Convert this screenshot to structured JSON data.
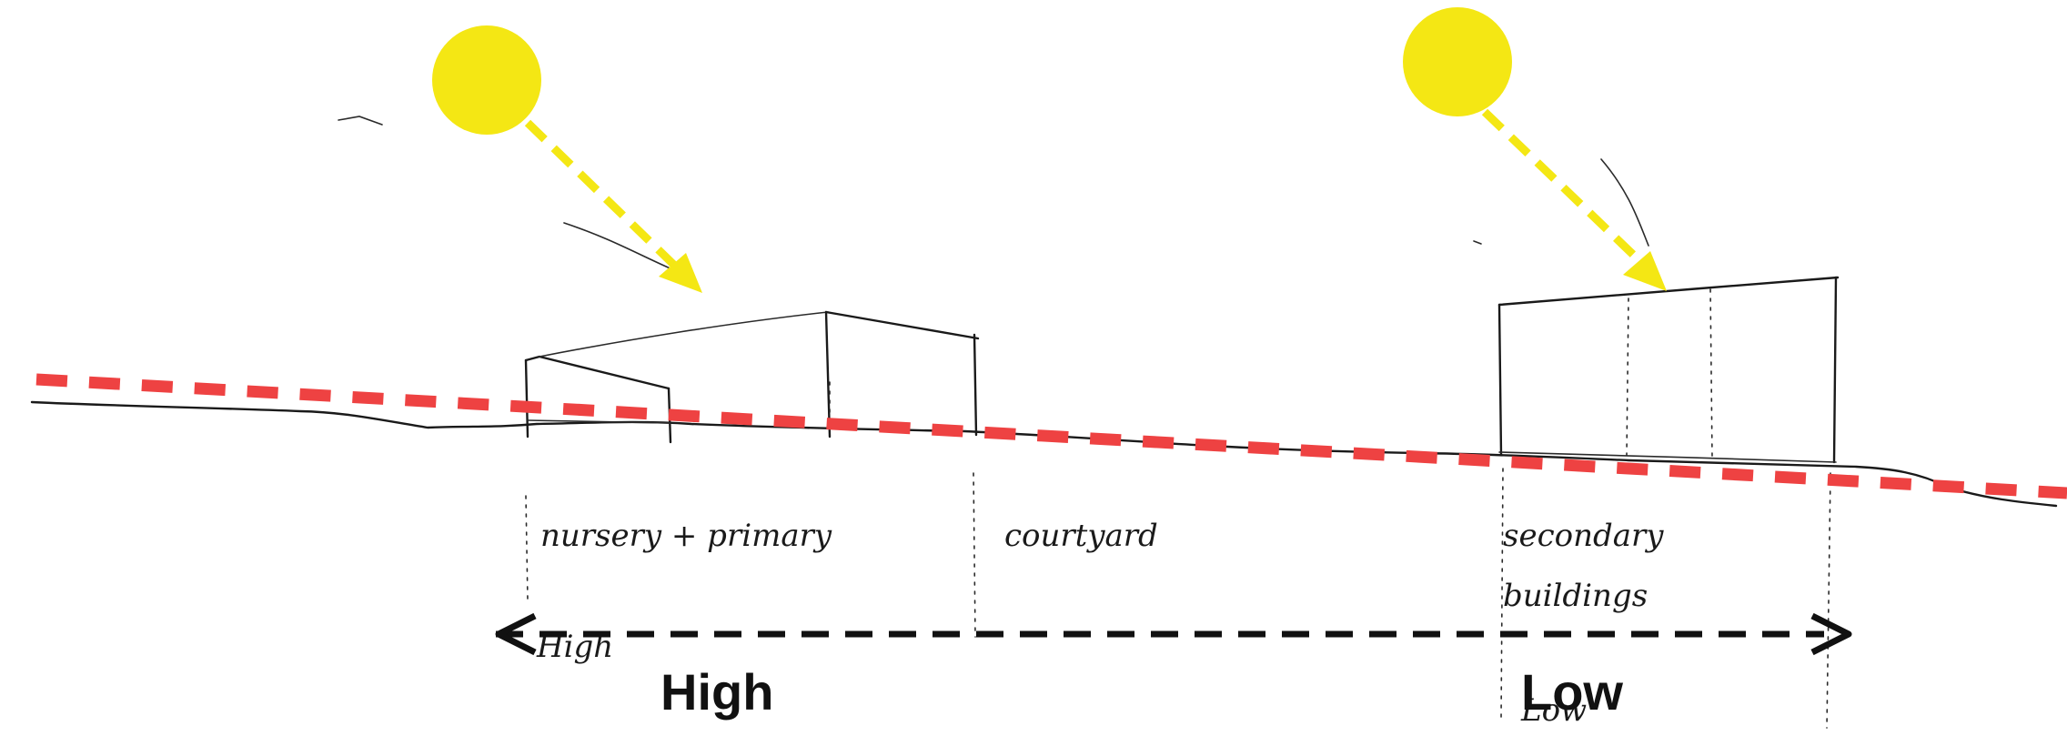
{
  "labels": {
    "nursery_primary": "nursery + primary",
    "courtyard": "courtyard",
    "secondary_line1": "secondary",
    "secondary_line2": "buildings",
    "handwritten_high": "High",
    "handwritten_low": "Low",
    "high": "High",
    "low": "Low"
  },
  "colors": {
    "sun": "#f4e714",
    "sun_arrow": "#f4e714",
    "slope_line": "#ee4242",
    "sketch": "#1a1a1a",
    "axis_arrow": "#111111"
  }
}
